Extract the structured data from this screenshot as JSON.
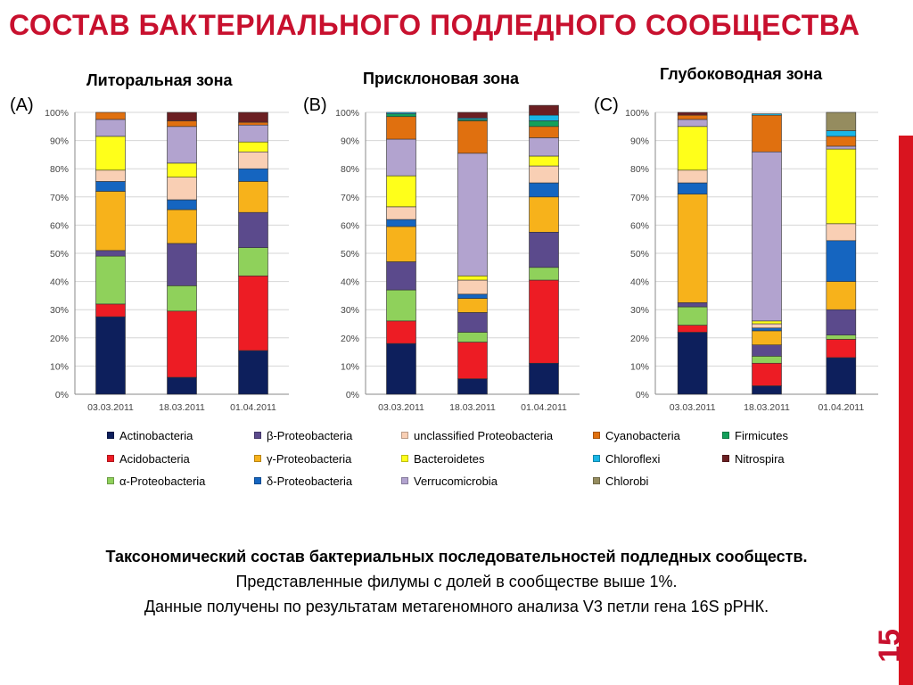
{
  "slide": {
    "title": "СОСТАВ БАКТЕРИАЛЬНОГО ПОДЛЕДНОГО СООБЩЕСТВА",
    "page_number": "15",
    "accent_color": "#c8102e"
  },
  "caption": {
    "line1": "Таксономический состав бактериальных последовательностей подледных сообществ.",
    "line2": "Представленные филумы с долей в сообществе выше 1%.",
    "line3": "Данные получены по результатам метагеномного анализа V3 петли гена 16S рРНК."
  },
  "legend": [
    {
      "key": "actino",
      "label": "Actinobacteria",
      "color": "#0d1f5c"
    },
    {
      "key": "beta",
      "label": "β-Proteobacteria",
      "color": "#5b4a8c"
    },
    {
      "key": "unclass",
      "label": "unclassified Proteobacteria",
      "color": "#f9cfb4"
    },
    {
      "key": "cyano",
      "label": "Cyanobacteria",
      "color": "#e0700f"
    },
    {
      "key": "firm",
      "label": "Firmicutes",
      "color": "#12a05a"
    },
    {
      "key": "acido",
      "label": "Acidobacteria",
      "color": "#ed1c24"
    },
    {
      "key": "gamma",
      "label": "γ-Proteobacteria",
      "color": "#f7b21b"
    },
    {
      "key": "bacter",
      "label": "Bacteroidetes",
      "color": "#ffff1a"
    },
    {
      "key": "chlorofl",
      "label": "Chloroflexi",
      "color": "#19b6e6"
    },
    {
      "key": "nitro",
      "label": "Nitrospira",
      "color": "#6b1f22"
    },
    {
      "key": "alpha",
      "label": "α-Proteobacteria",
      "color": "#8fd15b"
    },
    {
      "key": "delta",
      "label": "δ-Proteobacteria",
      "color": "#1565c0"
    },
    {
      "key": "verruco",
      "label": "Verrucomicrobia",
      "color": "#b2a3cf"
    },
    {
      "key": "chlorobi",
      "label": "Chlorobi",
      "color": "#958c5f"
    }
  ],
  "chart_data": [
    {
      "type": "bar",
      "stacked": true,
      "panel_label": "(A)",
      "title": "Литоральная зона",
      "categories": [
        "03.03.2011",
        "18.03.2011",
        "01.04.2011"
      ],
      "ylim": [
        0,
        100
      ],
      "yticks": [
        "0%",
        "10%",
        "20%",
        "30%",
        "40%",
        "50%",
        "60%",
        "70%",
        "80%",
        "90%",
        "100%"
      ],
      "grid": true,
      "series": [
        {
          "name": "Actinobacteria",
          "key": "actino",
          "values": [
            27.5,
            6,
            15.5
          ]
        },
        {
          "name": "Acidobacteria",
          "key": "acido",
          "values": [
            4.5,
            23.5,
            26.5
          ]
        },
        {
          "name": "α-Proteobacteria",
          "key": "alpha",
          "values": [
            17,
            9,
            10
          ]
        },
        {
          "name": "β-Proteobacteria",
          "key": "beta",
          "values": [
            2,
            15,
            12.5
          ]
        },
        {
          "name": "γ-Proteobacteria",
          "key": "gamma",
          "values": [
            21,
            12,
            11
          ]
        },
        {
          "name": "δ-Proteobacteria",
          "key": "delta",
          "values": [
            3.5,
            3.5,
            4.5
          ]
        },
        {
          "name": "unclassified Proteobacteria",
          "key": "unclass",
          "values": [
            4,
            8,
            6
          ]
        },
        {
          "name": "Bacteroidetes",
          "key": "bacter",
          "values": [
            12,
            5,
            3.5
          ]
        },
        {
          "name": "Verrucomicrobia",
          "key": "verruco",
          "values": [
            6,
            13,
            6
          ]
        },
        {
          "name": "Cyanobacteria",
          "key": "cyano",
          "values": [
            2.5,
            2,
            1
          ]
        },
        {
          "name": "Nitrospira",
          "key": "nitro",
          "values": [
            0,
            3,
            3.5
          ]
        }
      ]
    },
    {
      "type": "bar",
      "stacked": true,
      "panel_label": "(B)",
      "title": "Присклоновая зона",
      "categories": [
        "03.03.2011",
        "18.03.2011",
        "01.04.2011"
      ],
      "ylim": [
        0,
        100
      ],
      "yticks": [
        "0%",
        "10%",
        "20%",
        "30%",
        "40%",
        "50%",
        "60%",
        "70%",
        "80%",
        "90%",
        "100%"
      ],
      "grid": true,
      "series": [
        {
          "name": "Actinobacteria",
          "key": "actino",
          "values": [
            18,
            5.5,
            11
          ]
        },
        {
          "name": "Acidobacteria",
          "key": "acido",
          "values": [
            8,
            13,
            29.5
          ]
        },
        {
          "name": "α-Proteobacteria",
          "key": "alpha",
          "values": [
            11,
            3.5,
            4.5
          ]
        },
        {
          "name": "β-Proteobacteria",
          "key": "beta",
          "values": [
            10,
            7,
            12.5
          ]
        },
        {
          "name": "γ-Proteobacteria",
          "key": "gamma",
          "values": [
            12.5,
            5,
            12.5
          ]
        },
        {
          "name": "δ-Proteobacteria",
          "key": "delta",
          "values": [
            2.5,
            1.5,
            5
          ]
        },
        {
          "name": "unclassified Proteobacteria",
          "key": "unclass",
          "values": [
            4.5,
            5,
            6
          ]
        },
        {
          "name": "Bacteroidetes",
          "key": "bacter",
          "values": [
            11,
            1.5,
            3.5
          ]
        },
        {
          "name": "Verrucomicrobia",
          "key": "verruco",
          "values": [
            13,
            43.5,
            6.5
          ]
        },
        {
          "name": "Cyanobacteria",
          "key": "cyano",
          "values": [
            8,
            11.5,
            4
          ]
        },
        {
          "name": "Nitrospira",
          "key": "nitro",
          "values": [
            0,
            2,
            3.5
          ]
        },
        {
          "name": "Firmicutes",
          "key": "firm",
          "values": [
            1,
            0.5,
            2
          ]
        },
        {
          "name": "Chloroflexi",
          "key": "chlorofl",
          "values": [
            0.5,
            0.5,
            2
          ]
        }
      ]
    },
    {
      "type": "bar",
      "stacked": true,
      "panel_label": "(C)",
      "title": "Глубоководная зона",
      "categories": [
        "03.03.2011",
        "18.03.2011",
        "01.04.2011"
      ],
      "ylim": [
        0,
        100
      ],
      "yticks": [
        "0%",
        "10%",
        "20%",
        "30%",
        "40%",
        "50%",
        "60%",
        "70%",
        "80%",
        "90%",
        "100%"
      ],
      "grid": true,
      "series": [
        {
          "name": "Actinobacteria",
          "key": "actino",
          "values": [
            22,
            3,
            13
          ]
        },
        {
          "name": "Acidobacteria",
          "key": "acido",
          "values": [
            2.5,
            8,
            6.5
          ]
        },
        {
          "name": "α-Proteobacteria",
          "key": "alpha",
          "values": [
            6.5,
            2.5,
            1.5
          ]
        },
        {
          "name": "β-Proteobacteria",
          "key": "beta",
          "values": [
            1.5,
            4,
            9
          ]
        },
        {
          "name": "γ-Proteobacteria",
          "key": "gamma",
          "values": [
            38.5,
            5,
            10
          ]
        },
        {
          "name": "δ-Proteobacteria",
          "key": "delta",
          "values": [
            4,
            1,
            14.5
          ]
        },
        {
          "name": "unclassified Proteobacteria",
          "key": "unclass",
          "values": [
            4.5,
            1.5,
            6
          ]
        },
        {
          "name": "Bacteroidetes",
          "key": "bacter",
          "values": [
            15.5,
            1,
            26.5
          ]
        },
        {
          "name": "Verrucomicrobia",
          "key": "verruco",
          "values": [
            2.5,
            60,
            1
          ]
        },
        {
          "name": "Cyanobacteria",
          "key": "cyano",
          "values": [
            1.5,
            13,
            3.5
          ]
        },
        {
          "name": "Nitrospira",
          "key": "nitro",
          "values": [
            1,
            0,
            0
          ]
        },
        {
          "name": "Chloroflexi",
          "key": "chlorofl",
          "values": [
            0,
            0.5,
            2
          ]
        },
        {
          "name": "Chlorobi",
          "key": "chlorobi",
          "values": [
            0,
            0,
            6.5
          ]
        }
      ]
    }
  ]
}
